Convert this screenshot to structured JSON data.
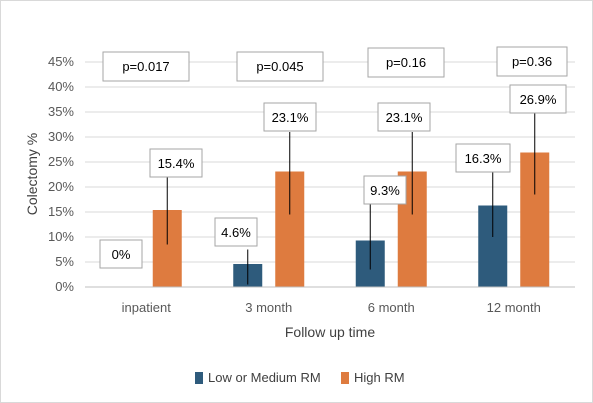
{
  "chart_data": {
    "type": "bar",
    "title": "",
    "xlabel": "Follow up time",
    "ylabel": "Colectomy %",
    "ylim": [
      0,
      45
    ],
    "yticks": [
      "0%",
      "5%",
      "10%",
      "15%",
      "20%",
      "25%",
      "30%",
      "35%",
      "40%",
      "45%"
    ],
    "grid": true,
    "legend_position": "bottom",
    "categories": [
      "inpatient",
      "3 month",
      "6 month",
      "12 month"
    ],
    "series": [
      {
        "name": "Low or Medium RM",
        "color": "#2e5b7c",
        "values": [
          0,
          4.6,
          9.3,
          16.3
        ],
        "labels": [
          "0%",
          "4.6%",
          "9.3%",
          "16.3%"
        ],
        "error_low": [
          0,
          0.5,
          3.5,
          10
        ],
        "error_high": [
          0,
          7.5,
          16.5,
          23
        ]
      },
      {
        "name": "High RM",
        "color": "#de7b3f",
        "values": [
          15.4,
          23.1,
          23.1,
          26.9
        ],
        "labels": [
          "15.4%",
          "23.1%",
          "23.1%",
          "26.9%"
        ],
        "error_low": [
          8.5,
          14.5,
          14.5,
          18.5
        ],
        "error_high": [
          22.5,
          31,
          31,
          35.5
        ]
      }
    ],
    "p_values": [
      "p=0.017",
      "p=0.045",
      "p=0.16",
      "p=0.36"
    ]
  }
}
